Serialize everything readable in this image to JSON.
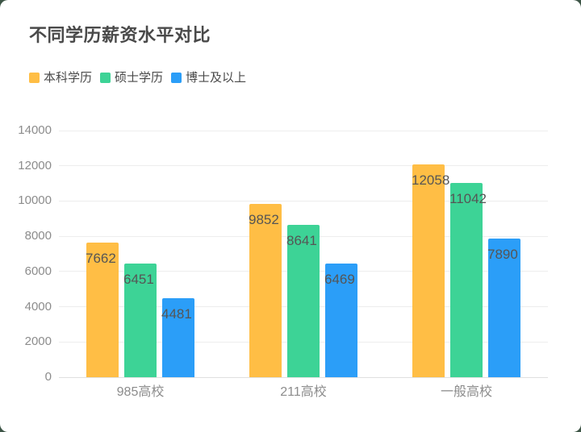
{
  "page": {
    "background": "#3d5546"
  },
  "card": {
    "background": "#ffffff"
  },
  "chart_data": {
    "type": "bar",
    "title": "不同学历薪资水平对比",
    "categories": [
      "985高校",
      "211高校",
      "一般高校"
    ],
    "series": [
      {
        "name": "本科学历",
        "color": "#ffbe45",
        "values": [
          7662,
          9852,
          12058
        ]
      },
      {
        "name": "硕士学历",
        "color": "#3dd396",
        "values": [
          6451,
          8641,
          11042
        ]
      },
      {
        "name": "博士及以上",
        "color": "#2b9ef8",
        "values": [
          4481,
          6469,
          7890
        ]
      }
    ],
    "xlabel": "",
    "ylabel": "",
    "ylim": [
      0,
      14000
    ],
    "yticks": [
      0,
      2000,
      4000,
      6000,
      8000,
      10000,
      12000,
      14000
    ],
    "grid": true,
    "legend_position": "top-left",
    "value_labels": true
  },
  "styles": {
    "title_color": "#4a4a4a",
    "legend_text_color": "#4a4a4a",
    "axis_tick_color": "#8c8c8c",
    "value_label_color": "#555555",
    "gridline_color": "#ededed",
    "axis_line_color": "#e0e0e0"
  }
}
